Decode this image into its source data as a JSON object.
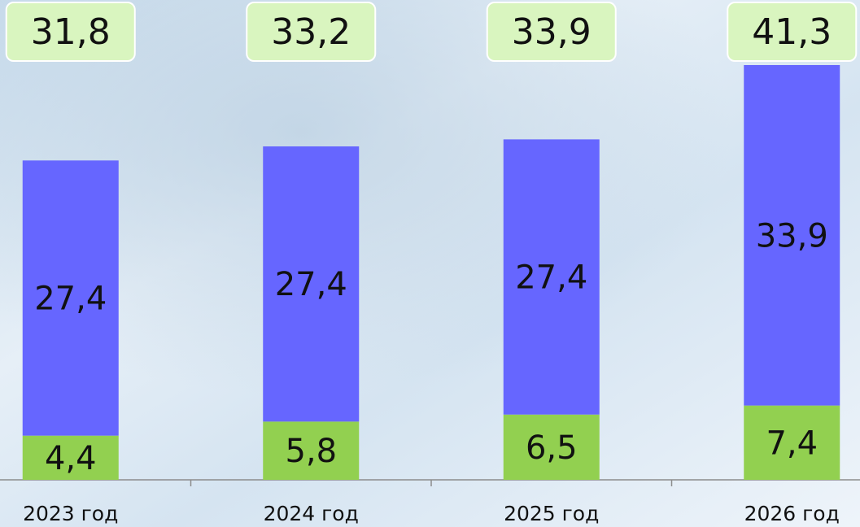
{
  "chart_data": {
    "type": "stacked-bar",
    "categories": [
      "2023 год",
      "2024 год",
      "2025 год",
      "2026 год"
    ],
    "series": [
      {
        "color": "#92d050",
        "values": [
          4.4,
          5.8,
          6.5,
          7.4
        ],
        "value_labels": [
          "4,4",
          "5,8",
          "6,5",
          "7,4"
        ]
      },
      {
        "color": "#6666ff",
        "values": [
          27.4,
          27.4,
          27.4,
          33.9
        ],
        "value_labels": [
          "27,4",
          "27,4",
          "27,4",
          "33,9"
        ]
      }
    ],
    "totals": [
      31.8,
      33.2,
      33.9,
      41.3
    ],
    "total_labels": [
      "31,8",
      "33,2",
      "33,9",
      "41,3"
    ],
    "total_box_color": "#d9f5bf"
  }
}
